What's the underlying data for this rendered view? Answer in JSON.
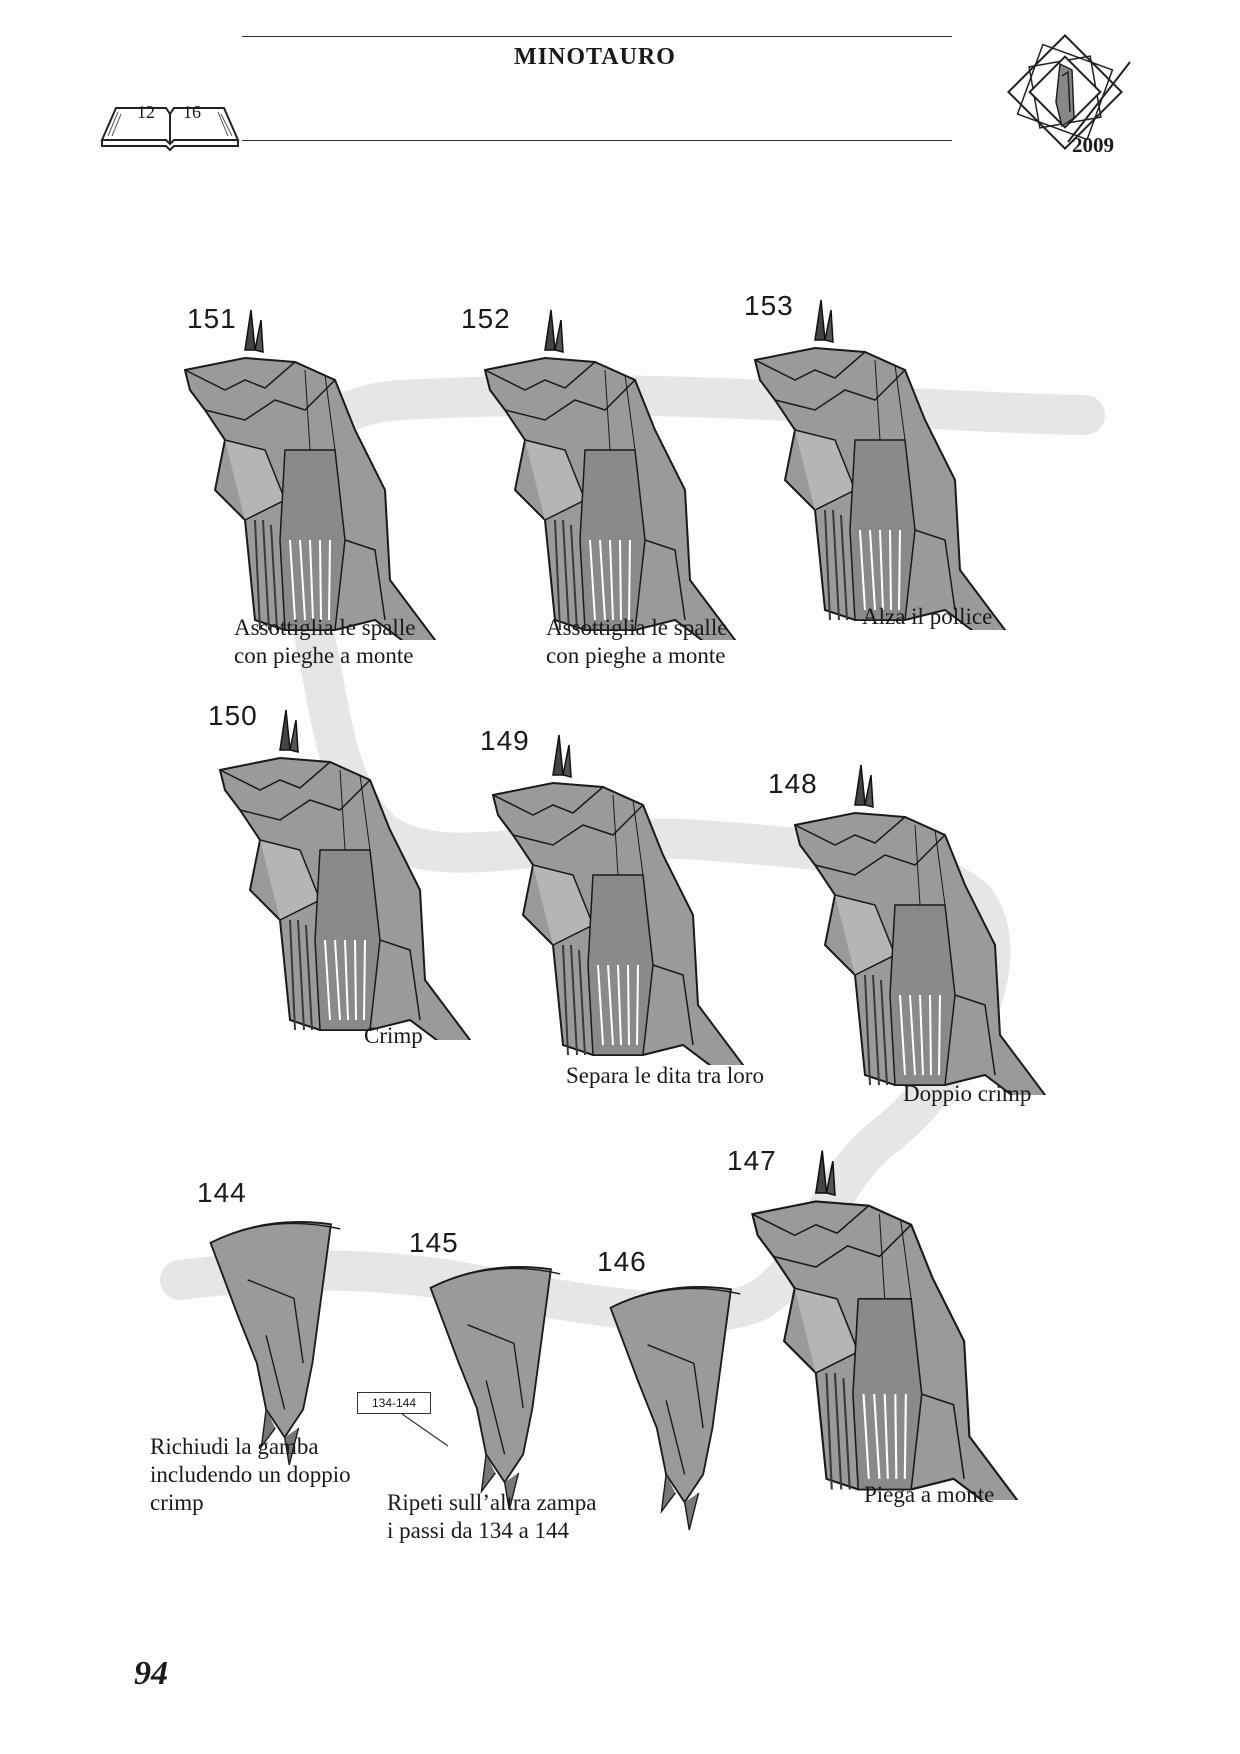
{
  "header": {
    "title": "MINOTAURO",
    "book_left": "12",
    "book_right": "16",
    "seal_year": "2009"
  },
  "steps": [
    {
      "number": "151",
      "caption": [
        "Assottiglia le spalle",
        "con pieghe a monte"
      ]
    },
    {
      "number": "152",
      "caption": [
        "Assottiglia le spalle",
        "con pieghe a monte"
      ]
    },
    {
      "number": "153",
      "caption": [
        "Alza il pollice"
      ]
    },
    {
      "number": "150",
      "caption": [
        "Crimp"
      ]
    },
    {
      "number": "149",
      "caption": [
        "Separa le dita tra loro"
      ]
    },
    {
      "number": "148",
      "caption": [
        "Doppio crimp"
      ]
    },
    {
      "number": "144",
      "caption": [
        "Richiudi la gamba",
        "includendo un doppio",
        "crimp"
      ]
    },
    {
      "number": "145",
      "caption": []
    },
    {
      "number": "146",
      "caption": []
    },
    {
      "number": "147",
      "caption": [
        "Piega a monte"
      ]
    }
  ],
  "repeat_note": {
    "ref_box": "134-144",
    "caption": [
      "Ripeti sull’altra zampa",
      "i passi da 134 a 144"
    ]
  },
  "footer": {
    "page_number": "94"
  },
  "colors": {
    "paper": "#fdfdfd",
    "figure_fill": "#9a9a9a",
    "band": "#e6e6e6",
    "ink": "#1a1a1a"
  }
}
